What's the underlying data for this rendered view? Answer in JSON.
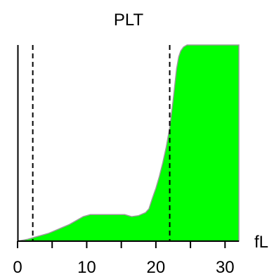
{
  "chart_data": {
    "type": "area",
    "title": "PLT",
    "xlabel": "",
    "ylabel": "",
    "x_unit": "fL",
    "xlim": [
      0,
      32
    ],
    "ylim": [
      0,
      100
    ],
    "x_tick_labels": [
      "0",
      "10",
      "20",
      "30"
    ],
    "x_tick_values": [
      0,
      10,
      20,
      30
    ],
    "minor_tick_values": [
      5,
      15,
      25
    ],
    "markers": [
      2.2,
      22
    ],
    "grid": false,
    "legend": "none",
    "fill_color": "#00ff00",
    "series": [
      {
        "x": [
          0,
          1.5,
          2.5,
          3.5,
          4.5,
          5.5,
          6.5,
          7.5,
          8.5,
          9.5,
          10.5,
          11.5,
          12.5,
          13.5,
          14.5,
          15.5,
          16.5,
          17.5,
          18.5,
          19.0,
          19.5,
          20.0,
          20.5,
          21.0,
          21.5,
          22.0,
          22.5,
          23.0,
          23.3,
          23.6,
          24.0,
          24.5,
          32
        ],
        "y": [
          0,
          1,
          2,
          3,
          4,
          5.5,
          7,
          8.5,
          10.5,
          12.5,
          13.5,
          13.5,
          13.5,
          13.5,
          13.5,
          13.5,
          12.5,
          13,
          14.5,
          16.5,
          22,
          27,
          33,
          40,
          48,
          58,
          72,
          88,
          94,
          97,
          99,
          100,
          100
        ]
      }
    ]
  }
}
